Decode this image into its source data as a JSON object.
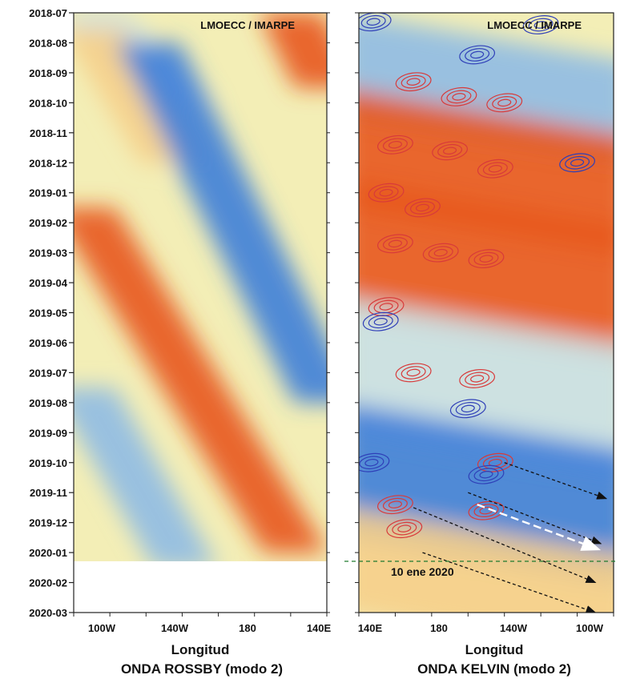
{
  "colors": {
    "warm_deep": "#e8581c",
    "warm": "#f3a15a",
    "warm_light": "#f6cf8a",
    "neutral": "#f3eeb6",
    "cool_light": "#c9e0e6",
    "cool": "#8fbbe4",
    "cool_deep": "#3f7fd9",
    "contour_positive": "#d83a3a",
    "contour_negative": "#2f3fb8",
    "arrow": "#111111",
    "arrow_highlight": "#ffffff",
    "reference_line": "#1f7a2e"
  },
  "chart_data": [
    {
      "type": "heatmap",
      "title": "ONDA ROSSBY (modo 2)",
      "watermark": "LMOECC / IMARPE",
      "xlabel": "Longitud",
      "ylabel": "",
      "x_tick_labels": [
        "100W",
        "140W",
        "180",
        "140E"
      ],
      "y_tick_labels": [
        "2018-07",
        "2018-08",
        "2018-09",
        "2018-10",
        "2018-11",
        "2018-12",
        "2019-01",
        "2019-02",
        "2019-03",
        "2019-04",
        "2019-05",
        "2019-06",
        "2019-07",
        "2019-08",
        "2019-09",
        "2019-10",
        "2019-11",
        "2019-12",
        "2020-01",
        "2020-02",
        "2020-03"
      ],
      "xlim": [
        "80W",
        "140E"
      ],
      "ylim": [
        "2018-07",
        "2020-03"
      ],
      "data_end": "2020-01-10",
      "grid": false,
      "bands": [
        {
          "sign": "negative",
          "level": 0.4,
          "lon_start": 91,
          "lon_end": 140,
          "t_start": 0,
          "t_end": 3
        },
        {
          "sign": "positive",
          "level": 0.5,
          "lon_start": 90,
          "lon_end": 135,
          "t_start": 0.5,
          "t_end": 5
        },
        {
          "sign": "negative",
          "level": 0.8,
          "lon_start": 121,
          "lon_end": 220,
          "t_start": 1,
          "t_end": 13
        },
        {
          "sign": "positive",
          "level": 1.0,
          "lon_start": 85,
          "lon_end": 203,
          "t_start": 6.5,
          "t_end": 18
        },
        {
          "sign": "negative",
          "level": 0.6,
          "lon_start": 85,
          "lon_end": 142,
          "t_start": 12.5,
          "t_end": 18.5
        },
        {
          "sign": "positive",
          "level": 1.0,
          "lon_start": 200,
          "lon_end": 220,
          "t_start": 0,
          "t_end": 2.5
        }
      ]
    },
    {
      "type": "heatmap",
      "title": "ONDA KELVIN (modo 2)",
      "watermark": "LMOECC / IMARPE",
      "xlabel": "Longitud",
      "ylabel": "",
      "x_tick_labels": [
        "140E",
        "180",
        "140W",
        "100W"
      ],
      "xlim": [
        "140E",
        "80W"
      ],
      "ylim": [
        "2018-07",
        "2020-03"
      ],
      "data_end": "2020-01-10",
      "grid": false,
      "annotation": "10 ene 2020",
      "bands": [
        {
          "sign": "negative",
          "level": 0.6,
          "lon_start": 140,
          "lon_end": 280,
          "t_start": 0,
          "t_end": 3.5
        },
        {
          "sign": "positive",
          "level": 0.9,
          "lon_start": 140,
          "lon_end": 280,
          "t_start": 2.5,
          "t_end": 6.5
        },
        {
          "sign": "positive",
          "level": 1.0,
          "lon_start": 140,
          "lon_end": 280,
          "t_start": 5.5,
          "t_end": 10
        },
        {
          "sign": "negative",
          "level": 0.5,
          "lon_start": 140,
          "lon_end": 280,
          "t_start": 9.5,
          "t_end": 14
        },
        {
          "sign": "negative",
          "level": 0.8,
          "lon_start": 140,
          "lon_end": 280,
          "t_start": 13,
          "t_end": 17.5
        },
        {
          "sign": "positive",
          "level": 0.4,
          "lon_start": 140,
          "lon_end": 280,
          "t_start": 16.5,
          "t_end": 20
        }
      ],
      "contours_positive": [
        {
          "lon": 170,
          "t": 2.3
        },
        {
          "lon": 195,
          "t": 2.8
        },
        {
          "lon": 220,
          "t": 3.0
        },
        {
          "lon": 160,
          "t": 4.4
        },
        {
          "lon": 190,
          "t": 4.6
        },
        {
          "lon": 215,
          "t": 5.2
        },
        {
          "lon": 155,
          "t": 6.0
        },
        {
          "lon": 175,
          "t": 6.5
        },
        {
          "lon": 160,
          "t": 7.7
        },
        {
          "lon": 185,
          "t": 8.0
        },
        {
          "lon": 210,
          "t": 8.2
        },
        {
          "lon": 155,
          "t": 9.8
        },
        {
          "lon": 170,
          "t": 12.0
        },
        {
          "lon": 205,
          "t": 12.2
        },
        {
          "lon": 215,
          "t": 15.0
        },
        {
          "lon": 160,
          "t": 16.4
        },
        {
          "lon": 165,
          "t": 17.2
        },
        {
          "lon": 210,
          "t": 16.6
        }
      ],
      "contours_negative": [
        {
          "lon": 148,
          "t": 0.3
        },
        {
          "lon": 205,
          "t": 1.4
        },
        {
          "lon": 240,
          "t": 0.4
        },
        {
          "lon": 260,
          "t": 5.0
        },
        {
          "lon": 152,
          "t": 10.3
        },
        {
          "lon": 200,
          "t": 13.2
        },
        {
          "lon": 210,
          "t": 15.4
        },
        {
          "lon": 147,
          "t": 15.0
        }
      ],
      "arrows": [
        {
          "lon_start": 220,
          "t_start": 15.0,
          "lon_end": 276,
          "t_end": 16.2
        },
        {
          "lon_start": 200,
          "t_start": 16.0,
          "lon_end": 273,
          "t_end": 17.7
        },
        {
          "lon_start": 170,
          "t_start": 16.5,
          "lon_end": 270,
          "t_end": 19.0
        },
        {
          "lon_start": 175,
          "t_start": 18.0,
          "lon_end": 270,
          "t_end": 20.0
        }
      ]
    }
  ]
}
